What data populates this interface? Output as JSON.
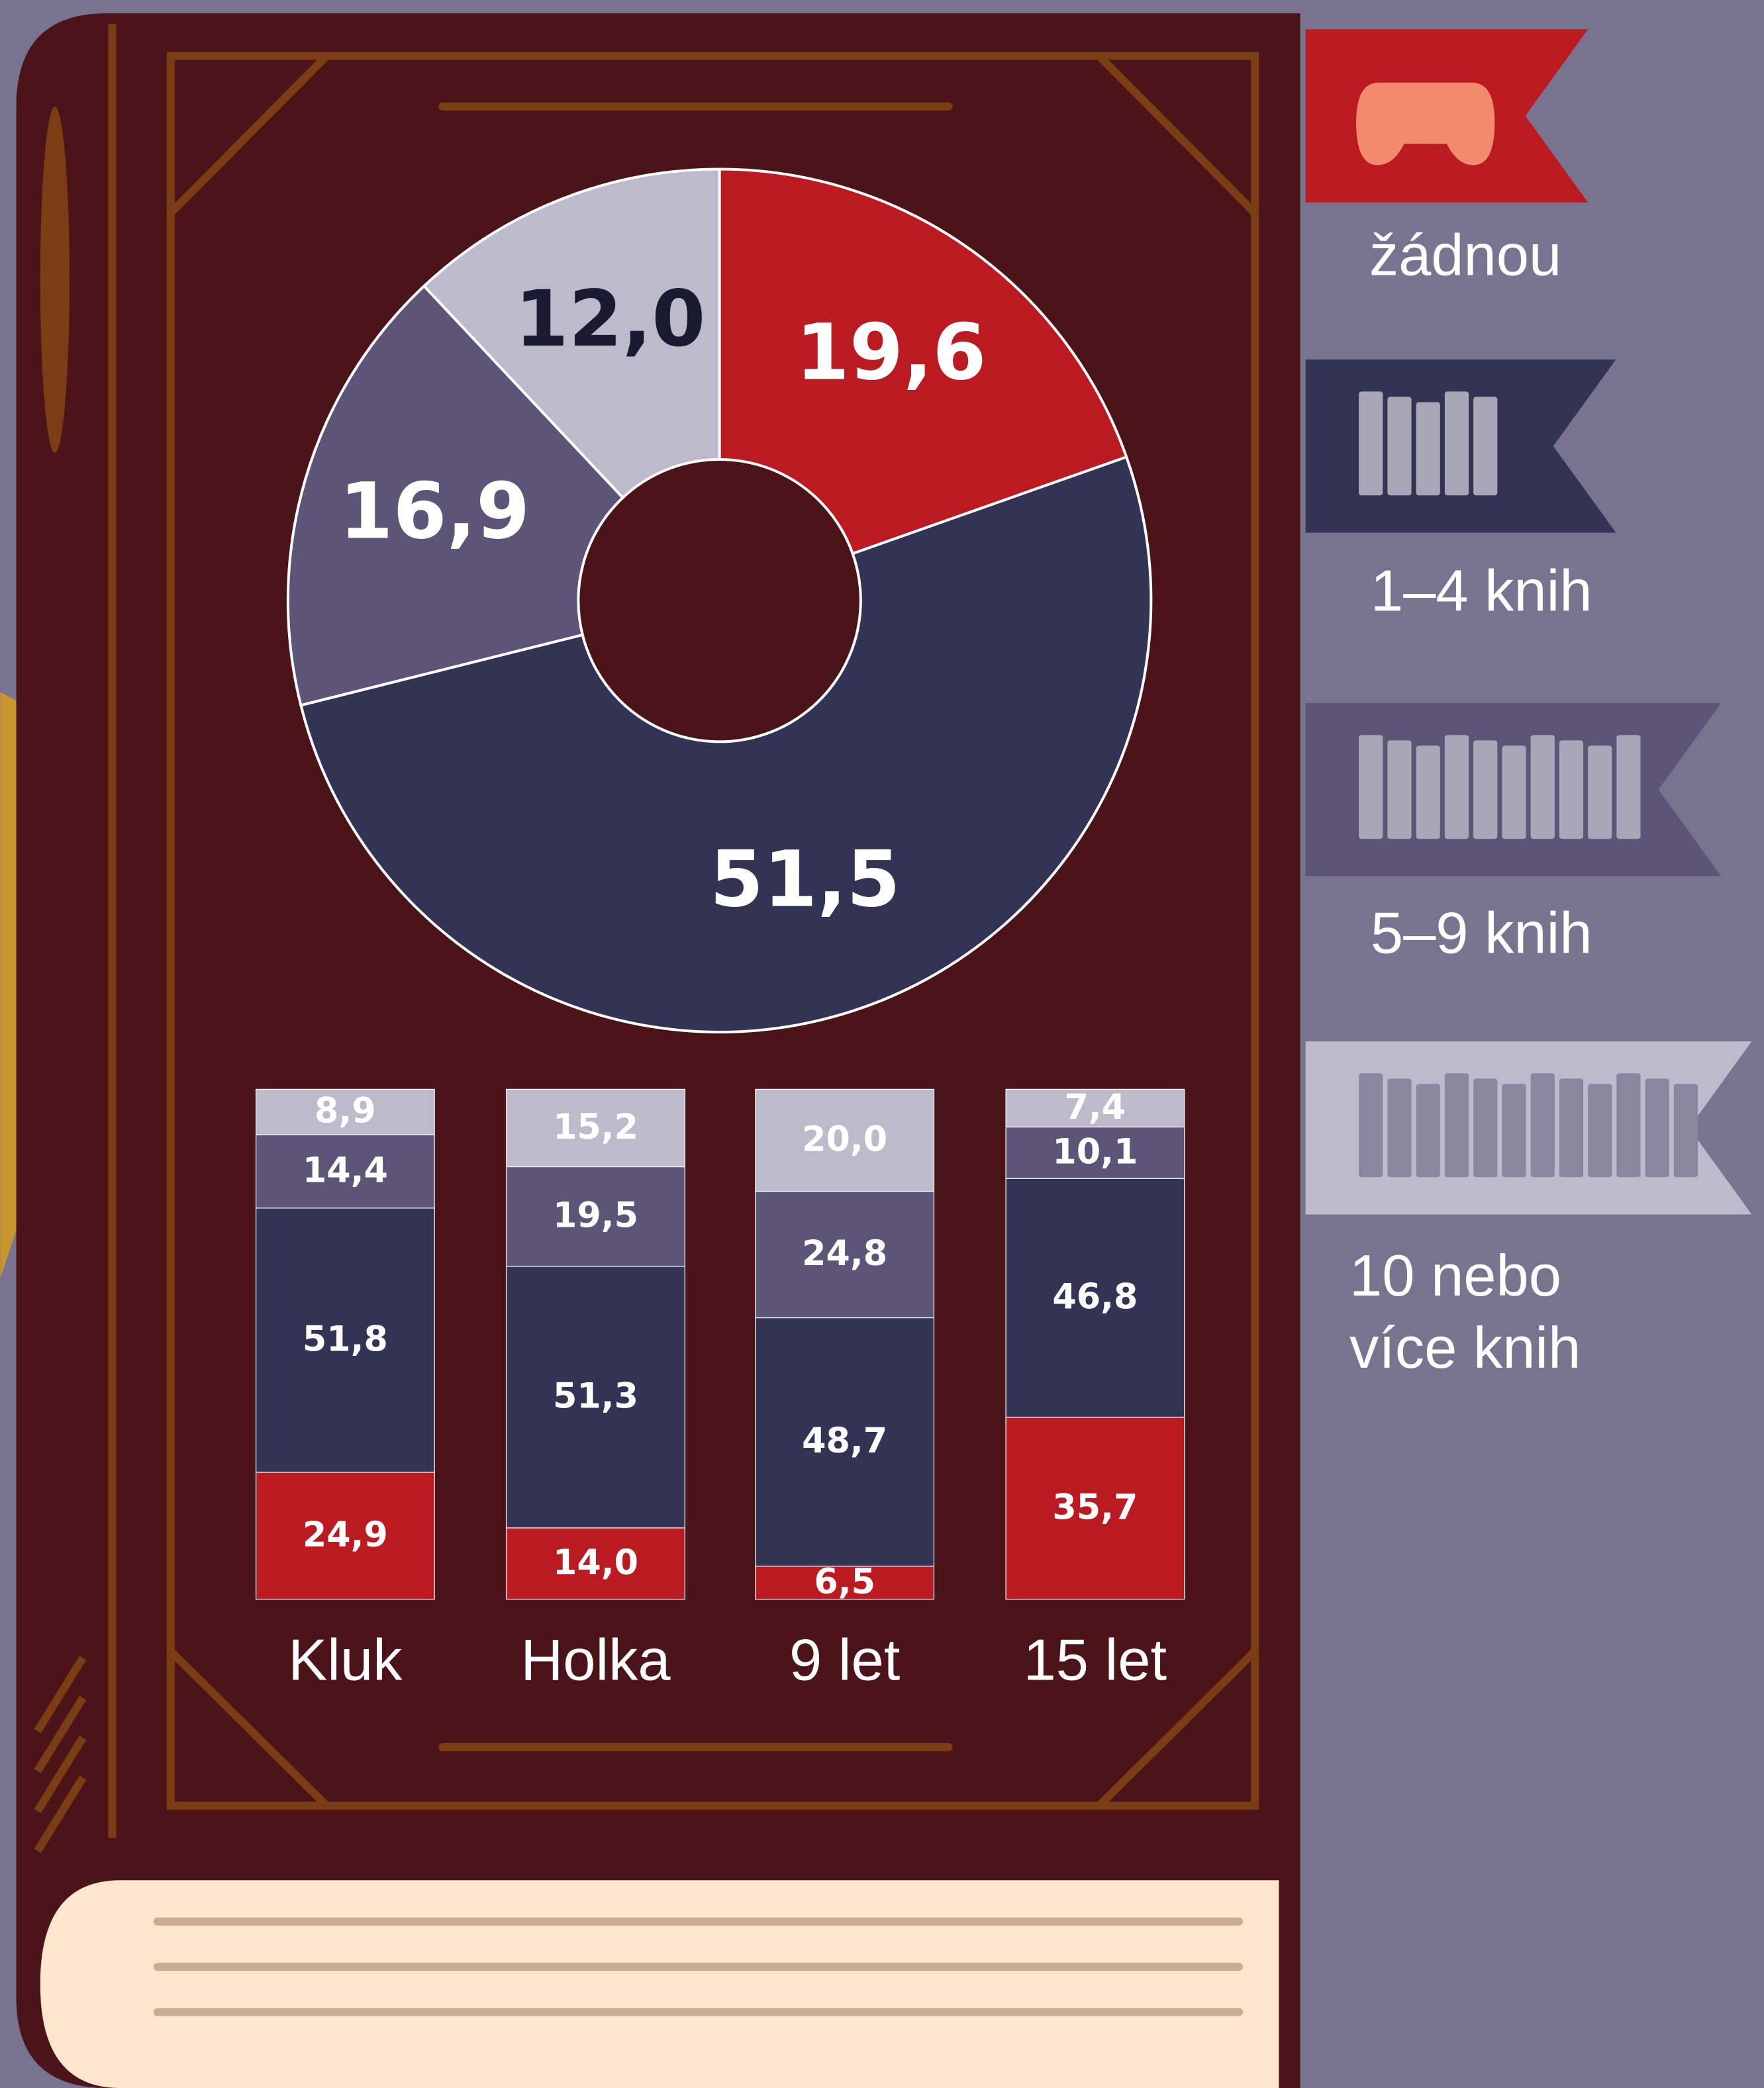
{
  "chart_data": [
    {
      "type": "pie",
      "donut": true,
      "values": [
        19.6,
        51.5,
        16.9,
        12.0
      ],
      "value_labels": [
        "19,6",
        "51,5",
        "16,9",
        "12,0"
      ],
      "colors": [
        "#bb1a21",
        "#333355",
        "#5c5577",
        "#bcbacb"
      ],
      "label_colors": [
        "#ffffff",
        "#ffffff",
        "#ffffff",
        "#1a1a33"
      ]
    },
    {
      "type": "bar",
      "stacked": true,
      "categories": [
        "Kluk",
        "Holka",
        "9 let",
        "15 let"
      ],
      "ylim": [
        0,
        100
      ],
      "series": [
        {
          "name": "žádnou",
          "color": "#bb1a21",
          "values": [
            24.9,
            14.0,
            6.5,
            35.7
          ],
          "value_labels": [
            "24,9",
            "14,0",
            "6,5",
            "35,7"
          ]
        },
        {
          "name": "1–4 knih",
          "color": "#333355",
          "values": [
            51.8,
            51.3,
            48.7,
            46.8
          ],
          "value_labels": [
            "51,8",
            "51,3",
            "48,7",
            "46,8"
          ]
        },
        {
          "name": "5–9 knih",
          "color": "#5c5577",
          "values": [
            14.4,
            19.5,
            24.8,
            10.1
          ],
          "value_labels": [
            "14,4",
            "19,5",
            "24,8",
            "10,1"
          ]
        },
        {
          "name": "10 nebo více knih",
          "color": "#bcbacb",
          "values": [
            8.9,
            15.2,
            20.0,
            7.4
          ],
          "value_labels": [
            "8,9",
            "15,2",
            "20,0",
            "7,4"
          ]
        }
      ]
    }
  ]
}
